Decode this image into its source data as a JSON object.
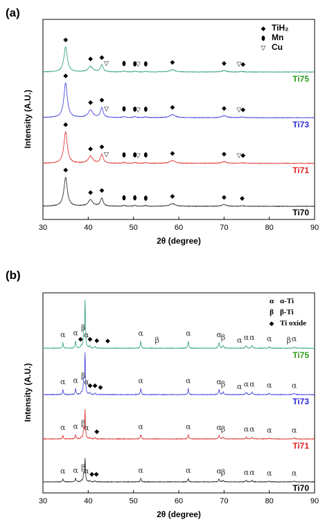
{
  "chart_data": [
    {
      "panel": "(a)",
      "type": "line",
      "xlabel": "2θ (degree)",
      "ylabel": "Intensity (A.U.)",
      "xlim": [
        30,
        90
      ],
      "xticks": [
        "30",
        "40",
        "50",
        "60",
        "70",
        "80",
        "90"
      ],
      "legend": {
        "placement": "top-right",
        "entries": [
          {
            "symbol": "◆",
            "label": "TiH₂"
          },
          {
            "symbol": "⬮",
            "label": "Mn"
          },
          {
            "symbol": "▽",
            "label": "Cu"
          }
        ]
      },
      "peaks": [
        {
          "pos": 35.0,
          "h": 1.0,
          "w": 0.45
        },
        {
          "pos": 40.5,
          "h": 0.22,
          "w": 0.6
        },
        {
          "pos": 43.0,
          "h": 0.28,
          "w": 0.35
        },
        {
          "pos": 47.9,
          "h": 0.03,
          "w": 0.3
        },
        {
          "pos": 50.3,
          "h": 0.03,
          "w": 0.3
        },
        {
          "pos": 52.7,
          "h": 0.025,
          "w": 0.3
        },
        {
          "pos": 58.6,
          "h": 0.09,
          "w": 0.7
        },
        {
          "pos": 70.0,
          "h": 0.06,
          "w": 0.6
        },
        {
          "pos": 74.0,
          "h": 0.02,
          "w": 0.4
        }
      ],
      "series": [
        {
          "name": "Ti75",
          "color": "#3aa77f",
          "label_color": "#2f9a1c",
          "gain": 0.9,
          "markers": [
            {
              "x": 35.0,
              "s": "◆"
            },
            {
              "x": 40.5,
              "s": "◆"
            },
            {
              "x": 43.0,
              "s": "◆"
            },
            {
              "x": 44.0,
              "s": "▽"
            },
            {
              "x": 47.9,
              "s": "⬮"
            },
            {
              "x": 50.3,
              "s": "⬮"
            },
            {
              "x": 51.0,
              "s": "▽"
            },
            {
              "x": 52.7,
              "s": "⬮"
            },
            {
              "x": 58.6,
              "s": "◆"
            },
            {
              "x": 70.0,
              "s": "◆"
            },
            {
              "x": 73.3,
              "s": "▽"
            },
            {
              "x": 74.2,
              "s": "◆"
            }
          ]
        },
        {
          "name": "Ti73",
          "color": "#4b4bdc",
          "label_color": "#2b2bd8",
          "gain": 1.0,
          "markers": [
            {
              "x": 35.0,
              "s": "◆"
            },
            {
              "x": 40.5,
              "s": "◆"
            },
            {
              "x": 43.0,
              "s": "◆"
            },
            {
              "x": 44.0,
              "s": "▽"
            },
            {
              "x": 47.9,
              "s": "⬮"
            },
            {
              "x": 50.3,
              "s": "⬮"
            },
            {
              "x": 51.0,
              "s": "▽"
            },
            {
              "x": 52.7,
              "s": "⬮"
            },
            {
              "x": 58.6,
              "s": "◆"
            },
            {
              "x": 70.0,
              "s": "◆"
            },
            {
              "x": 73.3,
              "s": "▽"
            },
            {
              "x": 74.2,
              "s": "◆"
            }
          ]
        },
        {
          "name": "Ti71",
          "color": "#e03b3b",
          "label_color": "#e02020",
          "gain": 0.95,
          "markers": [
            {
              "x": 35.0,
              "s": "◆"
            },
            {
              "x": 40.5,
              "s": "◆"
            },
            {
              "x": 43.0,
              "s": "◆"
            },
            {
              "x": 44.0,
              "s": "▽"
            },
            {
              "x": 47.9,
              "s": "⬮"
            },
            {
              "x": 50.3,
              "s": "⬮"
            },
            {
              "x": 51.0,
              "s": "▽"
            },
            {
              "x": 52.7,
              "s": "⬮"
            },
            {
              "x": 58.6,
              "s": "◆"
            },
            {
              "x": 70.0,
              "s": "◆"
            },
            {
              "x": 73.3,
              "s": "▽"
            },
            {
              "x": 74.2,
              "s": "◆"
            }
          ]
        },
        {
          "name": "Ti70",
          "color": "#333333",
          "label_color": "#000000",
          "gain": 0.95,
          "markers": [
            {
              "x": 35.0,
              "s": "◆"
            },
            {
              "x": 40.5,
              "s": "◆"
            },
            {
              "x": 43.0,
              "s": "◆"
            },
            {
              "x": 47.9,
              "s": "⬮"
            },
            {
              "x": 50.3,
              "s": "⬮"
            },
            {
              "x": 52.7,
              "s": "⬮"
            },
            {
              "x": 58.6,
              "s": "◆"
            },
            {
              "x": 70.0,
              "s": "◆"
            },
            {
              "x": 74.0,
              "s": "◆"
            }
          ]
        }
      ]
    },
    {
      "panel": "(b)",
      "type": "line",
      "xlabel": "2θ (degree)",
      "ylabel": "Intensity (A.U.)",
      "xlim": [
        30,
        90
      ],
      "xticks": [
        "30",
        "40",
        "50",
        "60",
        "70",
        "80",
        "90"
      ],
      "legend": {
        "placement": "top-right",
        "entries": [
          {
            "symbol": "α",
            "label": "α-Ti"
          },
          {
            "symbol": "β",
            "label": "β-Ti"
          },
          {
            "symbol": "◆",
            "label": "Ti oxide"
          }
        ]
      },
      "peaks": [
        {
          "pos": 34.4,
          "h": 0.12,
          "w": 0.12
        },
        {
          "pos": 37.2,
          "h": 0.15,
          "w": 0.12
        },
        {
          "pos": 38.5,
          "h": 0.05,
          "w": 0.12
        },
        {
          "pos": 39.0,
          "h": 0.35,
          "w": 0.12
        },
        {
          "pos": 39.3,
          "h": 1.0,
          "w": 0.1
        },
        {
          "pos": 40.3,
          "h": 0.05,
          "w": 0.12
        },
        {
          "pos": 41.5,
          "h": 0.04,
          "w": 0.12
        },
        {
          "pos": 51.6,
          "h": 0.15,
          "w": 0.12
        },
        {
          "pos": 62.1,
          "h": 0.15,
          "w": 0.12
        },
        {
          "pos": 68.9,
          "h": 0.12,
          "w": 0.15
        },
        {
          "pos": 69.8,
          "h": 0.06,
          "w": 0.15
        },
        {
          "pos": 74.9,
          "h": 0.06,
          "w": 0.15
        },
        {
          "pos": 76.2,
          "h": 0.06,
          "w": 0.15
        },
        {
          "pos": 80.0,
          "h": 0.03,
          "w": 0.15
        },
        {
          "pos": 85.5,
          "h": 0.03,
          "w": 0.2
        }
      ],
      "series": [
        {
          "name": "Ti75",
          "color": "#3aa77f",
          "label_color": "#2f9a1c",
          "gain": 0.95,
          "markers": [
            {
              "x": 34.4,
              "s": "α"
            },
            {
              "x": 37.2,
              "s": "α"
            },
            {
              "x": 38.3,
              "s": "◆"
            },
            {
              "x": 38.9,
              "s": "β"
            },
            {
              "x": 39.6,
              "s": "α"
            },
            {
              "x": 40.4,
              "s": "◆"
            },
            {
              "x": 41.9,
              "s": "◆"
            },
            {
              "x": 44.3,
              "s": "◆"
            },
            {
              "x": 51.6,
              "s": "α"
            },
            {
              "x": 55.2,
              "s": "β"
            },
            {
              "x": 62.1,
              "s": "α"
            },
            {
              "x": 68.9,
              "s": "α"
            },
            {
              "x": 69.8,
              "s": "β"
            },
            {
              "x": 73.4,
              "s": "α"
            },
            {
              "x": 74.9,
              "s": "α"
            },
            {
              "x": 76.2,
              "s": "α"
            },
            {
              "x": 80.0,
              "s": "α"
            },
            {
              "x": 84.3,
              "s": "β"
            },
            {
              "x": 85.5,
              "s": "α"
            }
          ]
        },
        {
          "name": "Ti73",
          "color": "#4b4bdc",
          "label_color": "#2b2bd8",
          "gain": 1.0,
          "markers": [
            {
              "x": 34.4,
              "s": "α"
            },
            {
              "x": 37.2,
              "s": "α"
            },
            {
              "x": 38.9,
              "s": "β"
            },
            {
              "x": 39.6,
              "s": "α"
            },
            {
              "x": 40.4,
              "s": "◆"
            },
            {
              "x": 41.5,
              "s": "◆"
            },
            {
              "x": 42.7,
              "s": "◆"
            },
            {
              "x": 51.6,
              "s": "α"
            },
            {
              "x": 62.1,
              "s": "α"
            },
            {
              "x": 68.9,
              "s": "α"
            },
            {
              "x": 69.8,
              "s": "β"
            },
            {
              "x": 73.4,
              "s": "α"
            },
            {
              "x": 74.9,
              "s": "α"
            },
            {
              "x": 76.2,
              "s": "α"
            },
            {
              "x": 80.0,
              "s": "α"
            },
            {
              "x": 85.5,
              "s": "α"
            }
          ]
        },
        {
          "name": "Ti71",
          "color": "#e03b3b",
          "label_color": "#e02020",
          "gain": 0.85,
          "markers": [
            {
              "x": 34.4,
              "s": "α"
            },
            {
              "x": 37.2,
              "s": "α"
            },
            {
              "x": 38.9,
              "s": "β"
            },
            {
              "x": 39.6,
              "s": "α"
            },
            {
              "x": 41.9,
              "s": "◆"
            },
            {
              "x": 51.6,
              "s": "α"
            },
            {
              "x": 62.1,
              "s": "α"
            },
            {
              "x": 68.9,
              "s": "α"
            },
            {
              "x": 69.8,
              "s": "β"
            },
            {
              "x": 74.9,
              "s": "α"
            },
            {
              "x": 76.2,
              "s": "α"
            },
            {
              "x": 80.0,
              "s": "α"
            },
            {
              "x": 85.5,
              "s": "α"
            }
          ]
        },
        {
          "name": "Ti70",
          "color": "#333333",
          "label_color": "#000000",
          "gain": 0.75,
          "markers": [
            {
              "x": 34.4,
              "s": "α"
            },
            {
              "x": 37.2,
              "s": "α"
            },
            {
              "x": 38.9,
              "s": "β"
            },
            {
              "x": 39.6,
              "s": "α"
            },
            {
              "x": 40.8,
              "s": "◆"
            },
            {
              "x": 41.8,
              "s": "◆"
            },
            {
              "x": 51.6,
              "s": "α"
            },
            {
              "x": 62.1,
              "s": "α"
            },
            {
              "x": 68.9,
              "s": "α"
            },
            {
              "x": 69.8,
              "s": "β"
            },
            {
              "x": 74.9,
              "s": "α"
            },
            {
              "x": 76.2,
              "s": "α"
            },
            {
              "x": 80.0,
              "s": "α"
            },
            {
              "x": 85.5,
              "s": "α"
            }
          ]
        }
      ]
    }
  ]
}
